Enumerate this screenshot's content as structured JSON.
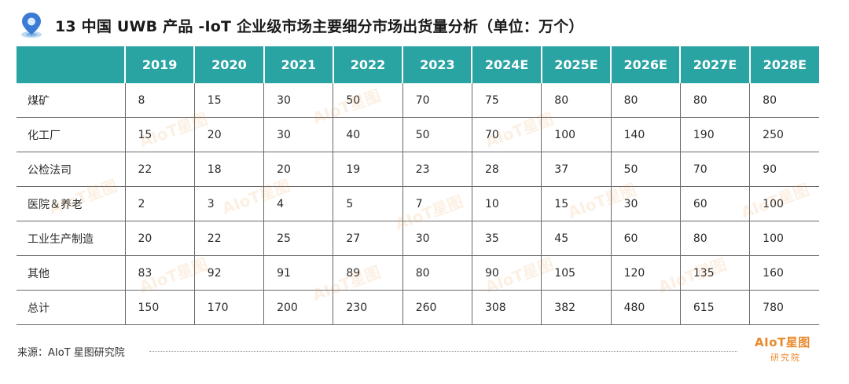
{
  "title": "13 中国 UWB 产品 -IoT 企业级市场主要细分市场出货量分析（单位：万个）",
  "table": {
    "columns": [
      "",
      "2019",
      "2020",
      "2021",
      "2022",
      "2023",
      "2024E",
      "2025E",
      "2026E",
      "2027E",
      "2028E"
    ],
    "rows": [
      [
        "煤矿",
        "8",
        "15",
        "30",
        "50",
        "70",
        "75",
        "80",
        "80",
        "80",
        "80"
      ],
      [
        "化工厂",
        "15",
        "20",
        "30",
        "40",
        "50",
        "70",
        "100",
        "140",
        "190",
        "250"
      ],
      [
        "公检法司",
        "22",
        "18",
        "20",
        "19",
        "23",
        "28",
        "37",
        "50",
        "70",
        "90"
      ],
      [
        "医院＆养老",
        "2",
        "3",
        "4",
        "5",
        "7",
        "10",
        "15",
        "30",
        "60",
        "100"
      ],
      [
        "工业生产制造",
        "20",
        "22",
        "25",
        "27",
        "30",
        "35",
        "45",
        "60",
        "80",
        "100"
      ],
      [
        "其他",
        "83",
        "92",
        "91",
        "89",
        "80",
        "90",
        "105",
        "120",
        "135",
        "160"
      ],
      [
        "总计",
        "150",
        "170",
        "200",
        "230",
        "260",
        "308",
        "382",
        "480",
        "615",
        "780"
      ]
    ]
  },
  "source": "来源：AIoT 星图研究院",
  "logo": {
    "top": "AIoT星图",
    "bottom": "研究院"
  },
  "watermark": "AIoT星图",
  "colors": {
    "header_bg": "#2aa3a3",
    "accent_orange": "#e98a2c",
    "icon_blue": "#3a7bd5"
  },
  "icons": {
    "title": "location-pin-icon"
  }
}
